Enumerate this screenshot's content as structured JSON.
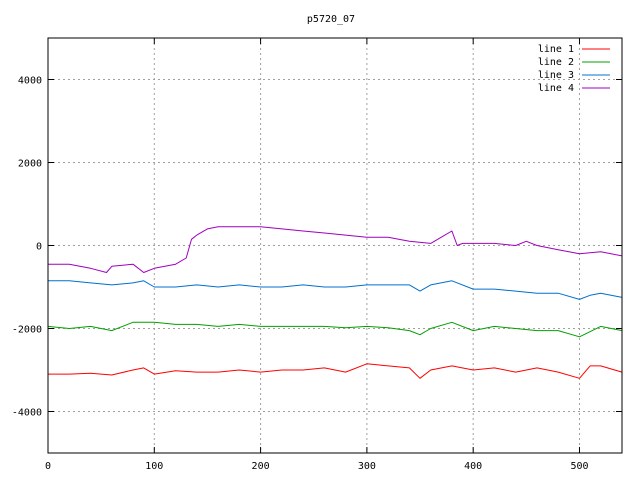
{
  "chart_data": {
    "type": "line",
    "title": "p5720_07",
    "xlim": [
      0,
      540
    ],
    "ylim": [
      -5000,
      5000
    ],
    "xticks": [
      0,
      100,
      200,
      300,
      400,
      500
    ],
    "yticks": [
      -4000,
      -2000,
      0,
      2000,
      4000
    ],
    "grid": true,
    "legend_position": "top-right",
    "series": [
      {
        "name": "line 1",
        "color": "#ff0000",
        "x": [
          0,
          20,
          40,
          60,
          80,
          90,
          100,
          120,
          140,
          160,
          180,
          200,
          220,
          240,
          260,
          280,
          300,
          320,
          340,
          350,
          360,
          380,
          400,
          420,
          440,
          460,
          480,
          500,
          510,
          520,
          540
        ],
        "y": [
          -3100,
          -3100,
          -3080,
          -3120,
          -3000,
          -2950,
          -3100,
          -3020,
          -3050,
          -3050,
          -3000,
          -3050,
          -3000,
          -3000,
          -2950,
          -3050,
          -2850,
          -2900,
          -2950,
          -3200,
          -3000,
          -2900,
          -3000,
          -2950,
          -3050,
          -2950,
          -3050,
          -3200,
          -2900,
          -2900,
          -3050
        ]
      },
      {
        "name": "line 2",
        "color": "#00a000",
        "x": [
          0,
          20,
          40,
          60,
          80,
          100,
          120,
          140,
          160,
          180,
          200,
          220,
          240,
          260,
          280,
          300,
          320,
          340,
          350,
          360,
          380,
          400,
          420,
          440,
          460,
          480,
          500,
          520,
          540
        ],
        "y": [
          -1950,
          -2000,
          -1950,
          -2050,
          -1850,
          -1850,
          -1900,
          -1900,
          -1950,
          -1900,
          -1950,
          -1950,
          -1950,
          -1950,
          -1980,
          -1950,
          -1980,
          -2050,
          -2150,
          -2000,
          -1850,
          -2050,
          -1950,
          -2000,
          -2050,
          -2050,
          -2200,
          -1950,
          -2050
        ]
      },
      {
        "name": "line 3",
        "color": "#0070d0",
        "x": [
          0,
          20,
          40,
          60,
          80,
          90,
          100,
          120,
          140,
          160,
          180,
          200,
          220,
          240,
          260,
          280,
          300,
          320,
          340,
          350,
          360,
          380,
          400,
          420,
          440,
          460,
          480,
          500,
          510,
          520,
          540
        ],
        "y": [
          -850,
          -850,
          -900,
          -950,
          -900,
          -850,
          -1000,
          -1000,
          -950,
          -1000,
          -950,
          -1000,
          -1000,
          -950,
          -1000,
          -1000,
          -950,
          -950,
          -950,
          -1100,
          -950,
          -850,
          -1050,
          -1050,
          -1100,
          -1150,
          -1150,
          -1300,
          -1200,
          -1150,
          -1250
        ]
      },
      {
        "name": "line 4",
        "color": "#a000c0",
        "x": [
          0,
          20,
          40,
          55,
          60,
          80,
          90,
          100,
          110,
          120,
          130,
          135,
          140,
          150,
          160,
          180,
          200,
          220,
          240,
          260,
          280,
          300,
          320,
          340,
          360,
          370,
          380,
          385,
          390,
          400,
          420,
          440,
          450,
          460,
          480,
          500,
          520,
          540
        ],
        "y": [
          -450,
          -450,
          -550,
          -650,
          -500,
          -450,
          -650,
          -550,
          -500,
          -450,
          -300,
          150,
          250,
          400,
          450,
          450,
          450,
          400,
          350,
          300,
          250,
          200,
          200,
          100,
          50,
          200,
          350,
          0,
          50,
          50,
          50,
          0,
          100,
          0,
          -100,
          -200,
          -150,
          -250
        ]
      }
    ]
  }
}
